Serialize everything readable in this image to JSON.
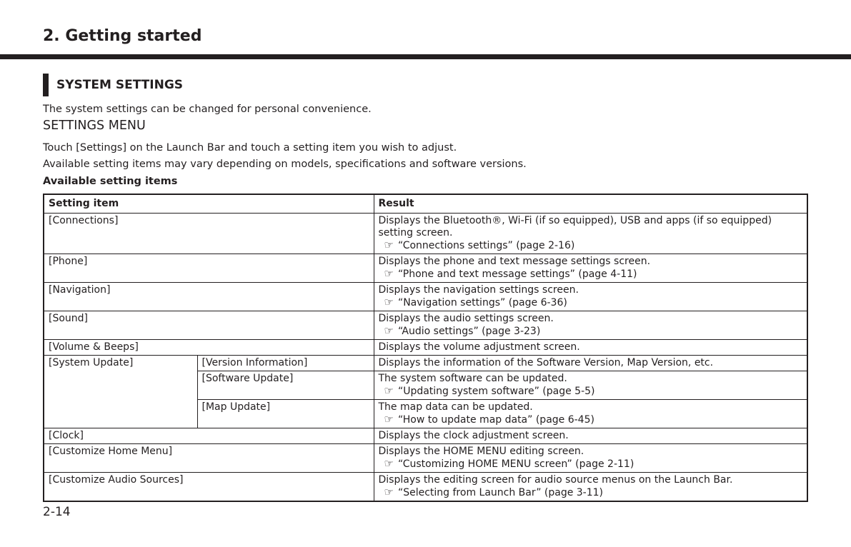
{
  "chapter": "2. Getting started",
  "section": "SYSTEM SETTINGS",
  "intro": "The system settings can be changed for personal convenience.",
  "subheading": "SETTINGS MENU",
  "para1": "Touch [Settings] on the Launch Bar and touch a setting item you wish to adjust.",
  "para2": "Available setting items may vary depending on models, specifications and software versions.",
  "table_title": "Available setting items",
  "table": {
    "headers": [
      "Setting item",
      "Result"
    ],
    "rows": [
      {
        "item": "[Connections]",
        "result": "Displays the Bluetooth®, Wi-Fi (if so equipped), USB and apps (if so equipped) setting screen.",
        "ref": "“Connections settings” (page 2-16)"
      },
      {
        "item": "[Phone]",
        "result": "Displays the phone and text message settings screen.",
        "ref": "“Phone and text message settings” (page 4-11)"
      },
      {
        "item": "[Navigation]",
        "result": "Displays the navigation settings screen.",
        "ref": "“Navigation settings” (page 6-36)"
      },
      {
        "item": "[Sound]",
        "result": "Displays the audio settings screen.",
        "ref": "“Audio settings” (page 3-23)"
      },
      {
        "item": "[Volume & Beeps]",
        "result": "Displays the volume adjustment screen."
      },
      {
        "item": "[System Update]",
        "subitems": [
          {
            "item": "[Version Information]",
            "result": "Displays the information of the Software Version, Map Version, etc."
          },
          {
            "item": "[Software Update]",
            "result": "The system software can be updated.",
            "ref": "“Updating system software” (page 5-5)"
          },
          {
            "item": "[Map Update]",
            "result": "The map data can be updated.",
            "ref": "“How to update map data” (page 6-45)"
          }
        ]
      },
      {
        "item": "[Clock]",
        "result": "Displays the clock adjustment screen."
      },
      {
        "item": "[Customize Home Menu]",
        "result": "Displays the HOME MENU editing screen.",
        "ref": "“Customizing HOME MENU screen” (page 2-11)"
      },
      {
        "item": "[Customize Audio Sources]",
        "result": "Displays the editing screen for audio source menus on the Launch Bar.",
        "ref": "“Selecting from Launch Bar” (page 3-11)"
      }
    ]
  },
  "ref_icon": "pointing-hand-icon",
  "page_number": "2-14"
}
